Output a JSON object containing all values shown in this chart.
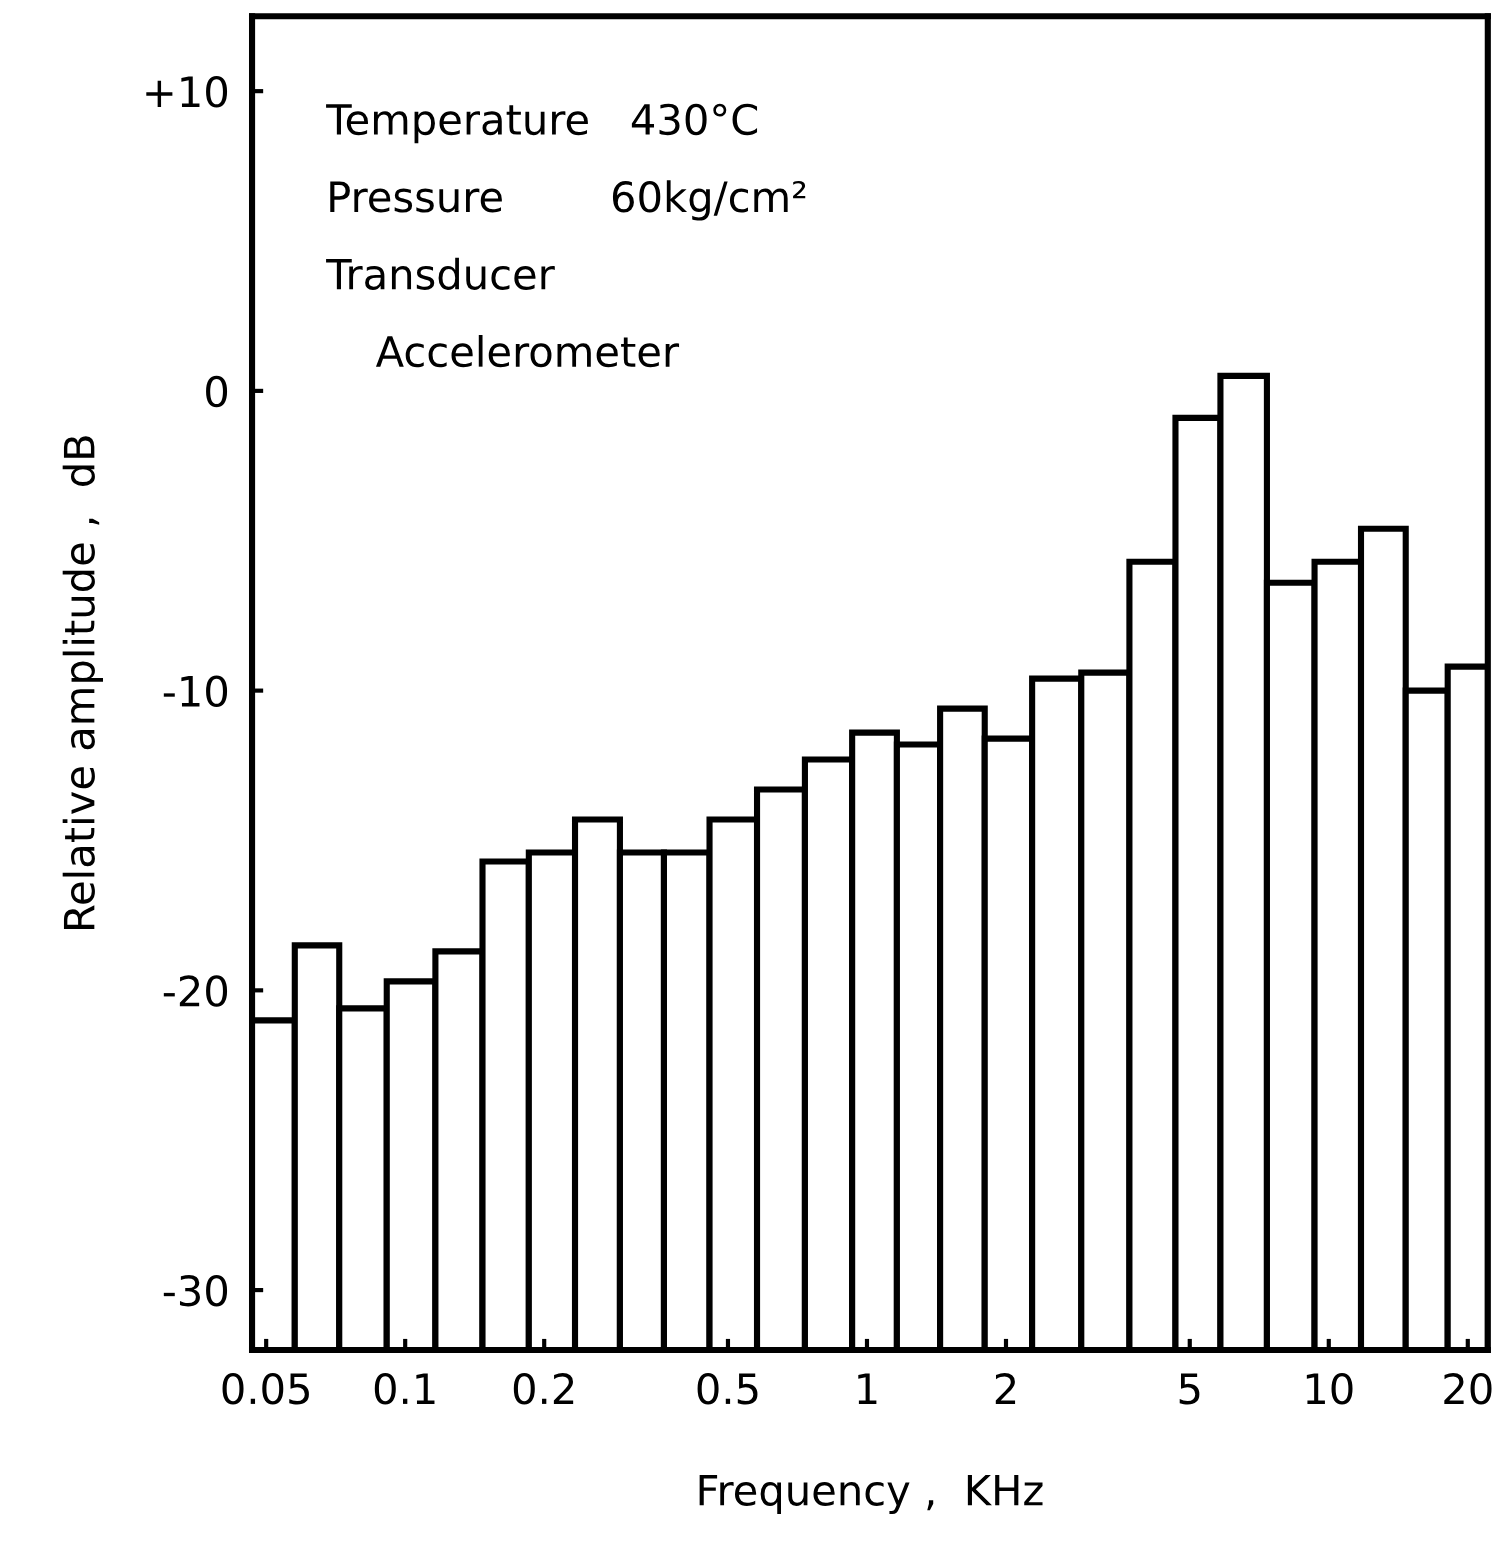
{
  "chart_data": {
    "type": "bar",
    "xlabel": "Frequency ,  KHz",
    "ylabel": "Relative amplitude ,  dB",
    "annotations": [
      "Temperature   430°C",
      "Pressure        60kg/cm²",
      "Transducer",
      "Accelerometer"
    ],
    "x": [
      0.0518,
      0.0642,
      0.0807,
      0.1031,
      0.1311,
      0.1649,
      0.2081,
      0.2614,
      0.3256,
      0.4055,
      0.513,
      0.6512,
      0.827,
      1.043,
      1.292,
      1.605,
      2.016,
      2.575,
      3.291,
      4.162,
      5.209,
      6.517,
      8.281,
      10.48,
      13.16,
      16.37,
      20.0
    ],
    "base": [
      -32,
      -32,
      -32,
      -32,
      -32,
      -32,
      -32,
      -32,
      -32,
      -32,
      -32,
      -32,
      -32,
      -32,
      -32,
      -32,
      -32,
      -32,
      -32,
      -32,
      -32,
      -32,
      -32,
      -32,
      -32,
      -32,
      -32
    ],
    "values": [
      11.0,
      13.5,
      11.4,
      12.3,
      13.3,
      16.3,
      16.6,
      17.7,
      16.6,
      16.6,
      17.7,
      18.7,
      19.7,
      20.6,
      20.2,
      21.4,
      20.4,
      22.4,
      22.6,
      26.3,
      31.1,
      32.5,
      25.6,
      26.3,
      27.4,
      22.0,
      22.8
    ],
    "color": "#ffffff",
    "log": "x",
    "xlim": [
      0.0466,
      22.1
    ],
    "xticks": [
      0.05,
      0.1,
      0.2,
      0.5,
      1,
      2,
      5,
      10,
      20
    ],
    "ylim": [
      -32,
      12.5
    ],
    "yticks": [
      {
        "value": 10,
        "label": "+10"
      },
      0,
      -10,
      -20,
      -30
    ]
  }
}
